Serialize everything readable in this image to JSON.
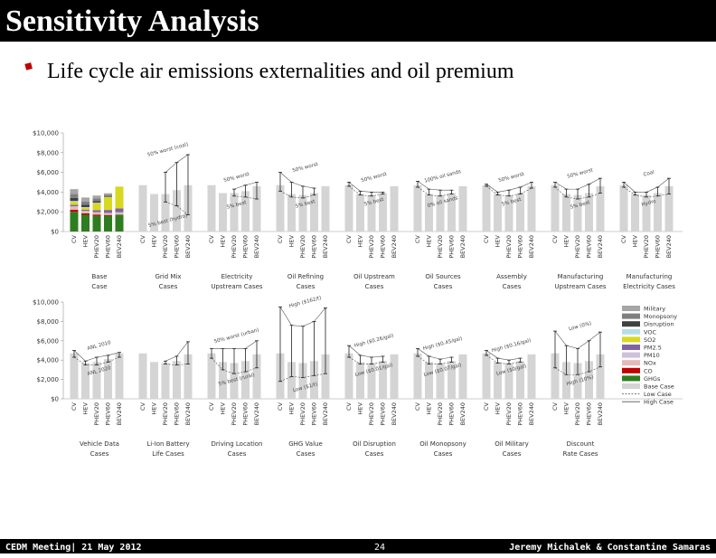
{
  "header": {
    "title": "Sensitivity Analysis",
    "bullet": "Life cycle air emissions externalities and oil premium"
  },
  "footer": {
    "left": "CEDM Meeting| 21 May 2012",
    "page": "24",
    "right": "Jeremy Michalek & Constantine Samaras"
  },
  "chart_data": [
    {
      "type": "bar",
      "ylim": [
        0,
        10000
      ],
      "yticks": [
        {
          "value": 0,
          "label": "$0"
        },
        {
          "value": 2000,
          "label": "$2,000"
        },
        {
          "value": 4000,
          "label": "$4,000"
        },
        {
          "value": 6000,
          "label": "$6,000"
        },
        {
          "value": 8000,
          "label": "$8,000"
        },
        {
          "value": 10000,
          "label": "$10,000"
        }
      ],
      "categories": [
        "CV",
        "HEV",
        "PHEV20",
        "PHEV60",
        "BEV240"
      ],
      "base_label": [
        "Base",
        "Case"
      ],
      "base_name": "Base Case",
      "low_name": "Low Case",
      "high_name": "High Case",
      "base_color": "#d4d4d4",
      "series": [
        {
          "name": "Military",
          "color": "#a6a6a6",
          "values": [
            500,
            400,
            300,
            150,
            0
          ]
        },
        {
          "name": "Monopsony",
          "color": "#7f7f7f",
          "values": [
            400,
            330,
            250,
            120,
            0
          ]
        },
        {
          "name": "Disruption",
          "color": "#404040",
          "values": [
            300,
            250,
            180,
            90,
            0
          ]
        },
        {
          "name": "VOC",
          "color": "#b7dde8",
          "values": [
            100,
            60,
            50,
            30,
            10
          ]
        },
        {
          "name": "SO2",
          "color": "#d8d820",
          "values": [
            300,
            200,
            700,
            1300,
            2200
          ]
        },
        {
          "name": "PM2.5",
          "color": "#8064a2",
          "values": [
            150,
            120,
            200,
            300,
            400
          ]
        },
        {
          "name": "PM10",
          "color": "#ccc0da",
          "values": [
            50,
            40,
            50,
            60,
            80
          ]
        },
        {
          "name": "NOx",
          "color": "#e6b8b7",
          "values": [
            300,
            200,
            200,
            150,
            150
          ]
        },
        {
          "name": "CO",
          "color": "#c00000",
          "values": [
            200,
            150,
            120,
            80,
            20
          ]
        },
        {
          "name": "GHGs",
          "color": "#2e7d1f",
          "values": [
            2000,
            1700,
            1600,
            1600,
            1700
          ]
        }
      ],
      "panels": [
        {
          "label": [
            "Grid Mix",
            "Cases"
          ],
          "values": [
            4700,
            3800,
            3800,
            4200,
            4700
          ],
          "high": [
            null,
            null,
            6000,
            7000,
            7800
          ],
          "low": [
            null,
            null,
            3000,
            2600,
            1700
          ],
          "annotations": [
            "50% worst (coal)",
            "5% best (hydro)"
          ]
        },
        {
          "label": [
            "Electricity",
            "Upstream Cases"
          ],
          "values": [
            4700,
            3900,
            3900,
            4100,
            4600
          ],
          "high": [
            null,
            null,
            4300,
            4700,
            5000
          ],
          "low": [
            null,
            null,
            3600,
            3500,
            3300
          ],
          "annotations": [
            "50% worst",
            "5% best"
          ]
        },
        {
          "label": [
            "Oil Refining",
            "Cases"
          ],
          "values": [
            4700,
            3800,
            3700,
            3900,
            4600
          ],
          "high": [
            6000,
            5000,
            4600,
            4400,
            null
          ],
          "low": [
            4100,
            3500,
            3400,
            3700,
            null
          ],
          "annotations": [
            "50% worst",
            "5% best"
          ]
        },
        {
          "label": [
            "Oil Upstream",
            "Cases"
          ],
          "values": [
            4700,
            3800,
            3700,
            3900,
            4600
          ],
          "high": [
            5000,
            4100,
            4000,
            4000,
            null
          ],
          "low": [
            4600,
            3700,
            3600,
            3800,
            null
          ],
          "annotations": [
            "50% worst",
            "5% best"
          ]
        },
        {
          "label": [
            "Oil Sources",
            "Cases"
          ],
          "values": [
            4700,
            3800,
            3700,
            3900,
            4600
          ],
          "high": [
            5100,
            4300,
            4200,
            4200,
            null
          ],
          "low": [
            4500,
            3700,
            3600,
            3800,
            null
          ],
          "annotations": [
            "100% oil sands",
            "0% oil sands"
          ]
        },
        {
          "label": [
            "Assembly",
            "Cases"
          ],
          "values": [
            4700,
            3800,
            3700,
            3900,
            4600
          ],
          "high": [
            4800,
            4000,
            4200,
            4500,
            5000
          ],
          "low": [
            4600,
            3700,
            3600,
            3800,
            4400
          ],
          "annotations": [
            "50% worst",
            "5% best"
          ]
        },
        {
          "label": [
            "Manufacturing",
            "Upstream Cases"
          ],
          "values": [
            4700,
            3800,
            3700,
            3900,
            4600
          ],
          "high": [
            5000,
            4300,
            4300,
            4800,
            5400
          ],
          "low": [
            4500,
            3500,
            3300,
            3500,
            3900
          ],
          "annotations": [
            "50% worst",
            "5% best"
          ]
        },
        {
          "label": [
            "Manufacturing",
            "Electricity Cases"
          ],
          "values": [
            4700,
            3800,
            3700,
            3900,
            4600
          ],
          "high": [
            5000,
            4000,
            4000,
            4500,
            5400
          ],
          "low": [
            4500,
            3700,
            3500,
            3600,
            3800
          ],
          "annotations": [
            "Coal",
            "Hydro"
          ]
        }
      ]
    },
    {
      "type": "bar",
      "ylim": [
        0,
        10000
      ],
      "yticks": [
        {
          "value": 0,
          "label": "$0"
        },
        {
          "value": 2000,
          "label": "$2,000"
        },
        {
          "value": 4000,
          "label": "$4,000"
        },
        {
          "value": 6000,
          "label": "$6,000"
        },
        {
          "value": 8000,
          "label": "$8,000"
        },
        {
          "value": 10000,
          "label": "$10,000"
        }
      ],
      "categories": [
        "CV",
        "HEV",
        "PHEV20",
        "PHEV60",
        "BEV240"
      ],
      "base_color": "#d4d4d4",
      "panels": [
        {
          "label": [
            "Vehicle Data",
            "Cases"
          ],
          "values": [
            4700,
            3700,
            3800,
            4100,
            4700
          ],
          "high": [
            5000,
            3900,
            4300,
            4500,
            4800
          ],
          "low": [
            4300,
            3500,
            3500,
            3800,
            4300
          ],
          "annotations": [
            "ANL 2010",
            "ANL 2020"
          ]
        },
        {
          "label": [
            "Li-Ion Battery",
            "Life Cases"
          ],
          "values": [
            4700,
            3800,
            3700,
            3900,
            4600
          ],
          "high": [
            null,
            null,
            3900,
            4400,
            5900
          ],
          "low": [
            null,
            null,
            3600,
            3500,
            3600
          ],
          "annotations": []
        },
        {
          "label": [
            "Driving Location",
            "Cases"
          ],
          "values": [
            4700,
            3800,
            3700,
            3900,
            4600
          ],
          "high": [
            5200,
            5200,
            5200,
            5200,
            6000
          ],
          "low": [
            4200,
            3000,
            2600,
            2800,
            3200
          ],
          "annotations": [
            "50% worst (urban)",
            "5% best (rural)"
          ]
        },
        {
          "label": [
            "GHG Value",
            "Cases"
          ],
          "values": [
            4700,
            3800,
            3700,
            3900,
            4600
          ],
          "high": [
            9500,
            7600,
            7500,
            8000,
            9400
          ],
          "low": [
            1800,
            2300,
            2200,
            2400,
            2600
          ],
          "annotations": [
            "High ($162/t)",
            "Low ($1/t)"
          ]
        },
        {
          "label": [
            "Oil Disruption",
            "Cases"
          ],
          "values": [
            4700,
            3800,
            3700,
            3900,
            4600
          ],
          "high": [
            5500,
            4500,
            4300,
            4400,
            null
          ],
          "low": [
            4300,
            3600,
            3600,
            3800,
            null
          ],
          "annotations": [
            "High ($0.26/gal)",
            "Low ($0.01/gal)"
          ]
        },
        {
          "label": [
            "Oil Monopsony",
            "Cases"
          ],
          "values": [
            4700,
            3800,
            3700,
            3900,
            4600
          ],
          "high": [
            5200,
            4400,
            4100,
            4300,
            null
          ],
          "low": [
            4400,
            3600,
            3600,
            3800,
            null
          ],
          "annotations": [
            "High ($0.45/gal)",
            "Low ($0.07/gal)"
          ]
        },
        {
          "label": [
            "Oil Military",
            "Cases"
          ],
          "values": [
            4700,
            3800,
            3700,
            3900,
            4600
          ],
          "high": [
            5000,
            4200,
            4000,
            4200,
            null
          ],
          "low": [
            4500,
            3700,
            3600,
            3800,
            null
          ],
          "annotations": [
            "High ($0.16/gal)",
            "Low ($0/gal)"
          ]
        },
        {
          "label": [
            "Discount",
            "Rate Cases"
          ],
          "values": [
            4700,
            3800,
            3700,
            3900,
            4600
          ],
          "high": [
            7000,
            5500,
            5200,
            6000,
            6900
          ],
          "low": [
            3200,
            2500,
            2500,
            2800,
            3300
          ],
          "annotations": [
            "Low (0%)",
            "High (10%)"
          ]
        }
      ]
    }
  ]
}
